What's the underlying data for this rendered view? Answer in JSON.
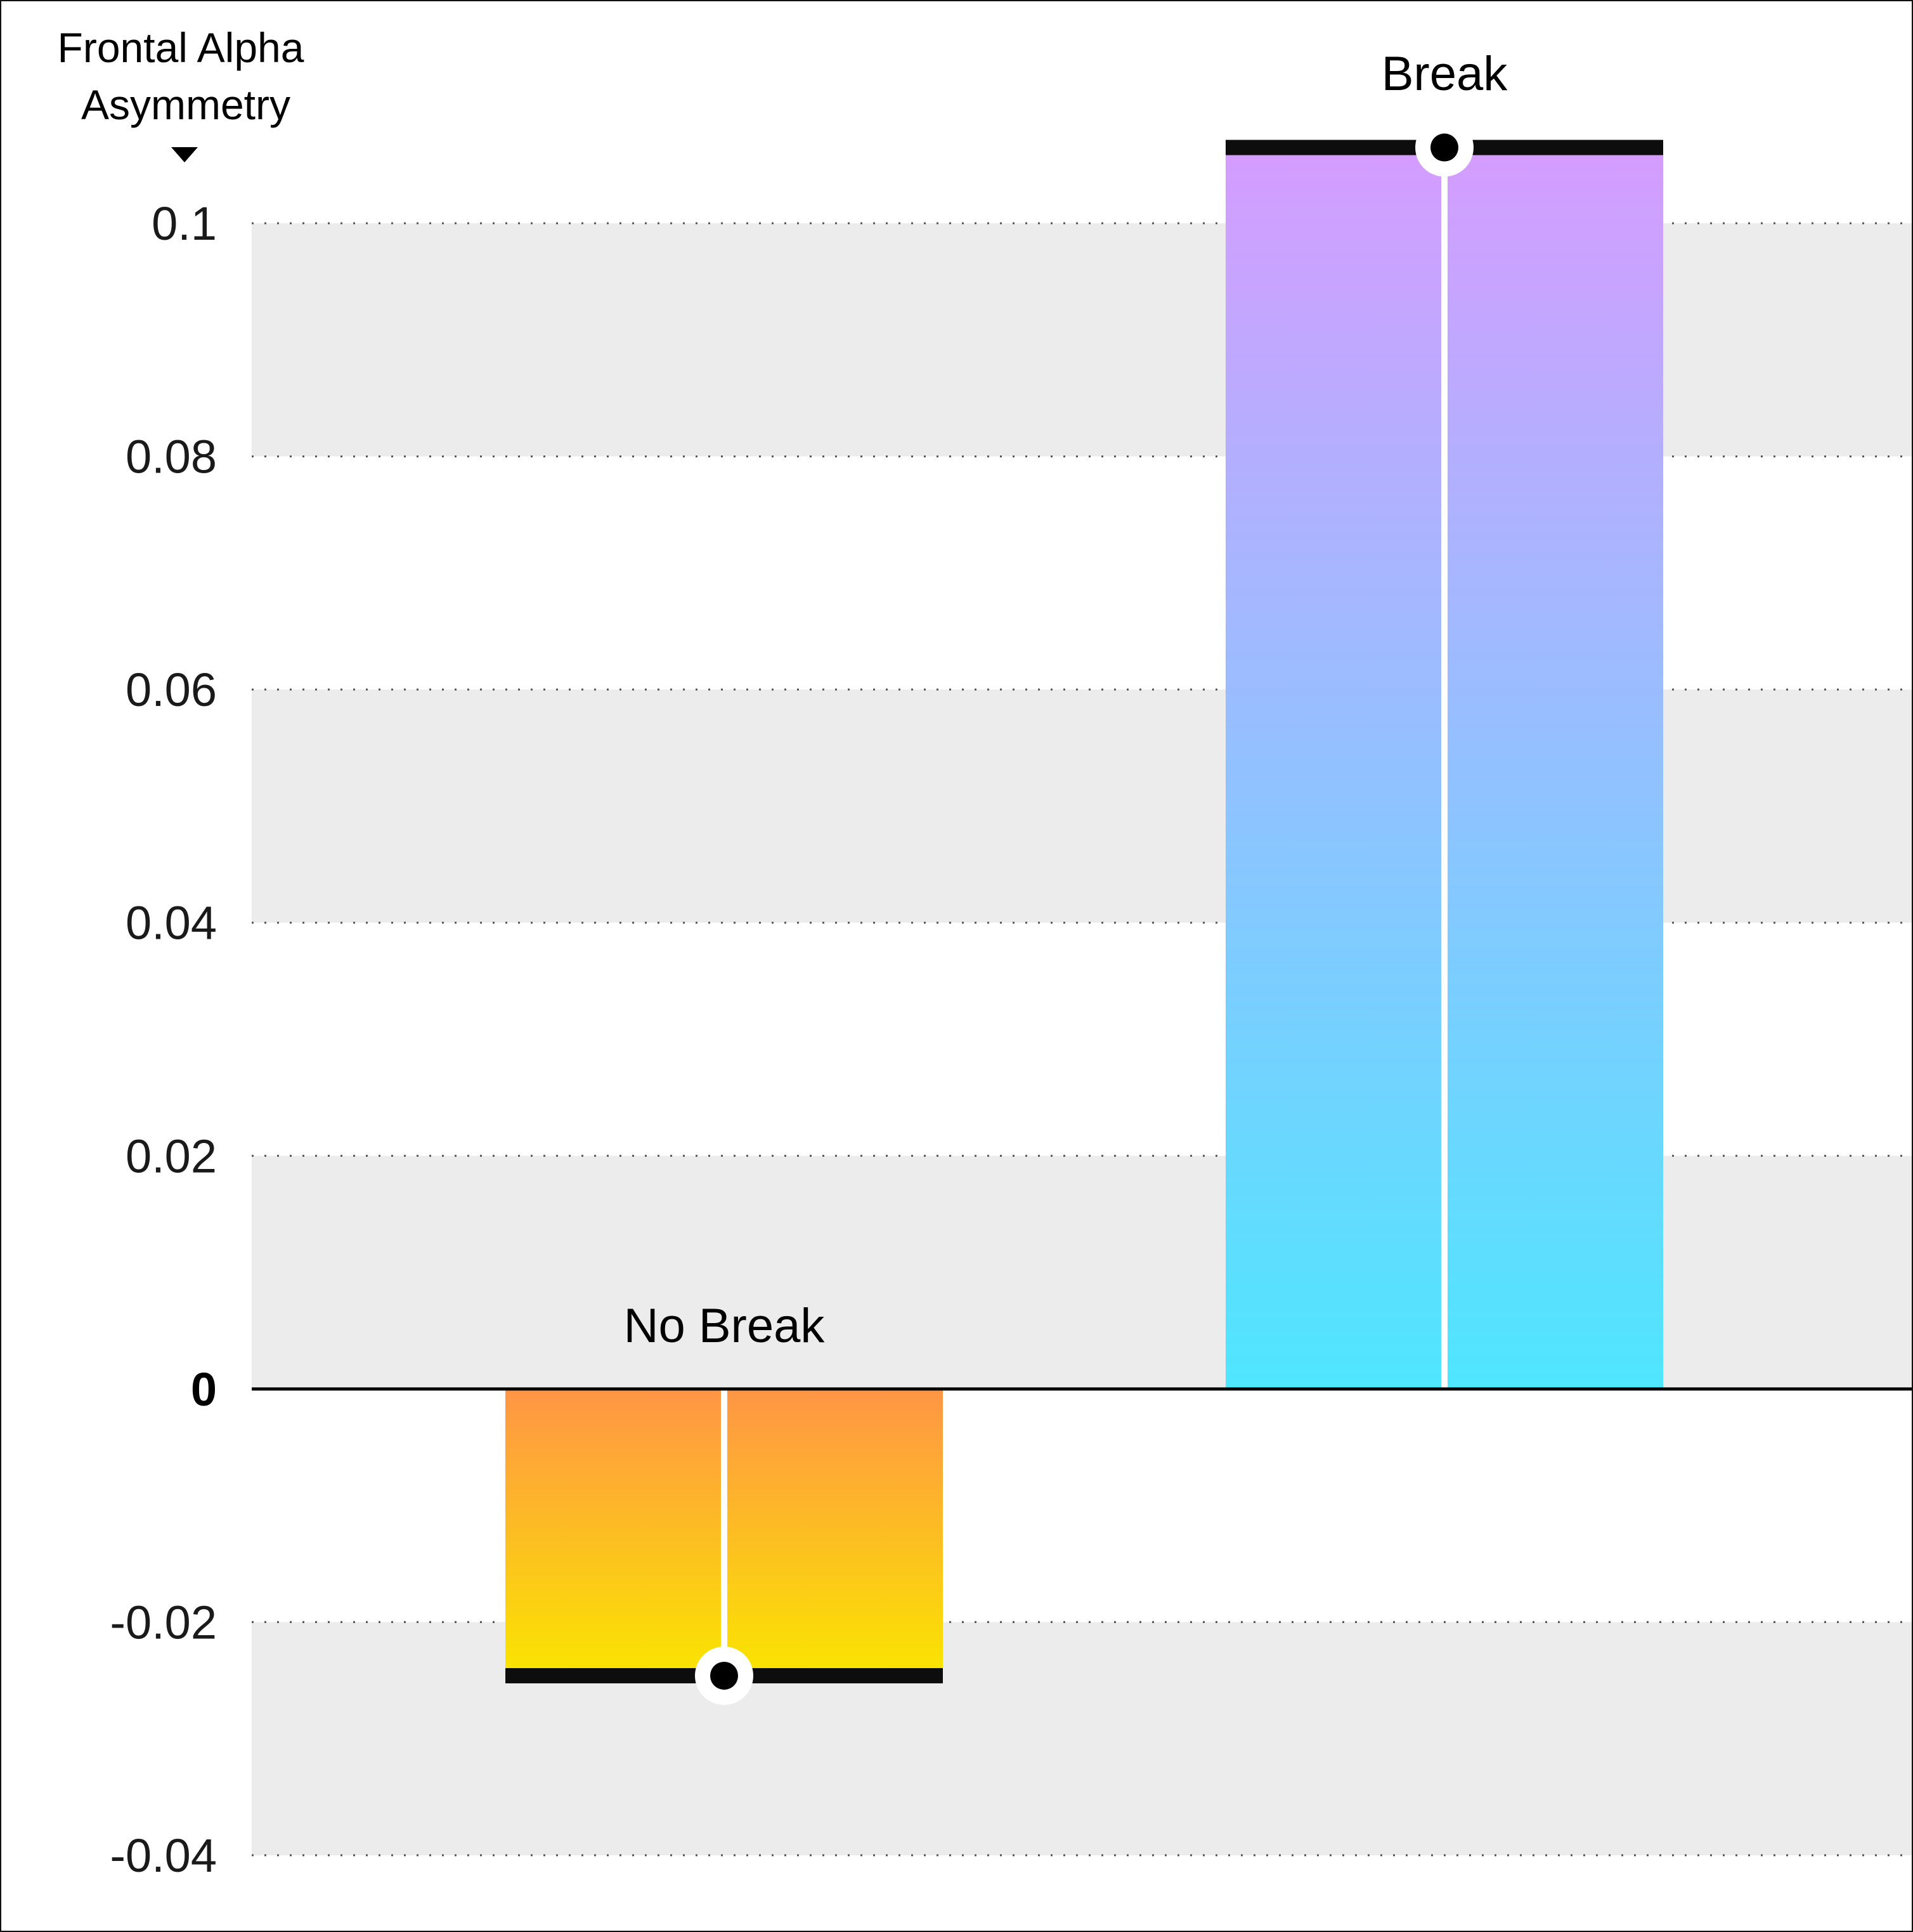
{
  "chart_data": {
    "type": "bar",
    "ylabel_lines": [
      "Frontal Alpha",
      "Asymmetry"
    ],
    "categories": [
      "No Break",
      "Break"
    ],
    "values": [
      -0.0246,
      0.1065
    ],
    "ylim": [
      -0.04,
      0.1
    ],
    "yticks": [
      0.1,
      0.08,
      0.06,
      0.04,
      0.02,
      0,
      -0.02,
      -0.04
    ],
    "ytick_labels": [
      "0.1",
      "0.08",
      "0.06",
      "0.04",
      "0.02",
      "0",
      "-0.02",
      "-0.04"
    ],
    "grid": true,
    "alternating_bands": true,
    "colors": {
      "band": "#ececec",
      "grid": "#555555",
      "zero_line": "#000000",
      "bar_cap": "#0d0d0d",
      "no_break_top": "#ff9546",
      "no_break_bottom": "#fae500",
      "break_top": "#d59cff",
      "break_bottom": "#4fe6ff"
    }
  }
}
